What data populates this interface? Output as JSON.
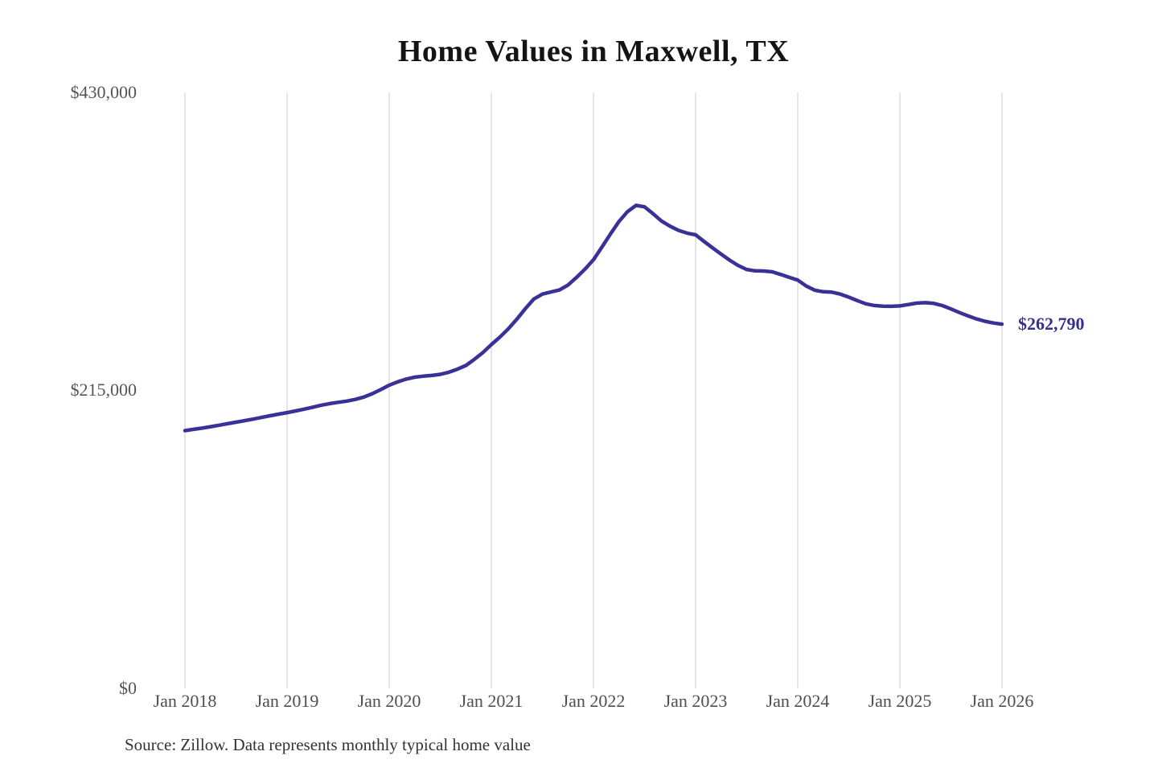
{
  "title": "Home Values in Maxwell, TX",
  "source_note": "Source: Zillow. Data represents monthly typical home value",
  "end_label": "$262,790",
  "colors": {
    "line": "#3a3198",
    "end_label": "#362e90",
    "grid": "#cbcbcb",
    "axis_text": "#555555",
    "title_text": "#141414",
    "source_text": "#333333",
    "background": "#ffffff"
  },
  "chart_data": {
    "type": "line",
    "title": "Home Values in Maxwell, TX",
    "xlabel": "",
    "ylabel": "",
    "ylim": [
      0,
      430000
    ],
    "grid": "vertical-only",
    "legend": "none",
    "x_interval": "monthly",
    "x_start": "Jan 2018",
    "x_end": "Jan 2026",
    "x_tick_labels": [
      "Jan 2018",
      "Jan 2019",
      "Jan 2020",
      "Jan 2021",
      "Jan 2022",
      "Jan 2023",
      "Jan 2024",
      "Jan 2025",
      "Jan 2026"
    ],
    "y_ticks": [
      {
        "value": 0,
        "label": "$0"
      },
      {
        "value": 215000,
        "label": "$215,000"
      },
      {
        "value": 430000,
        "label": "$430,000"
      }
    ],
    "end_value": 262790,
    "end_value_label": "$262,790",
    "series": [
      {
        "name": "Monthly typical home value",
        "values": [
          186000,
          186900,
          187800,
          188800,
          189900,
          191000,
          192100,
          193200,
          194300,
          195500,
          196700,
          197900,
          199000,
          200200,
          201500,
          202900,
          204300,
          205500,
          206400,
          207300,
          208500,
          210200,
          212600,
          215600,
          218800,
          221200,
          223200,
          224600,
          225300,
          225800,
          226600,
          228100,
          230300,
          233000,
          237400,
          242300,
          248100,
          253500,
          259500,
          266500,
          274000,
          281000,
          284500,
          286000,
          287500,
          291000,
          296500,
          302500,
          309300,
          318500,
          328000,
          337000,
          344000,
          348500,
          347500,
          342500,
          337200,
          333500,
          330500,
          328500,
          327300,
          322500,
          317800,
          313300,
          309000,
          305200,
          302300,
          301300,
          301200,
          300600,
          298700,
          296600,
          294600,
          290300,
          287300,
          286200,
          285900,
          284500,
          282300,
          279800,
          277500,
          276300,
          275800,
          275700,
          276000,
          277000,
          278000,
          278300,
          277800,
          276200,
          273800,
          271200,
          268800,
          266600,
          264900,
          263600,
          262790
        ]
      }
    ]
  }
}
